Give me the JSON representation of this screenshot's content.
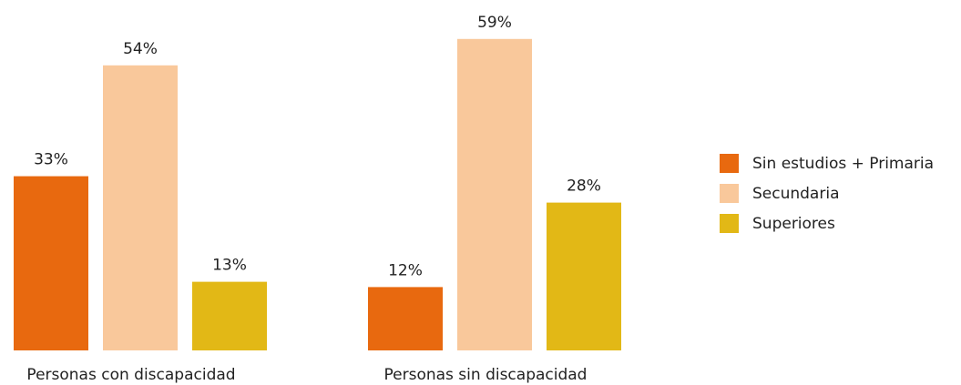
{
  "chart_data": {
    "type": "bar",
    "categories": [
      "Personas con discapacidad",
      "Personas sin discapacidad"
    ],
    "series": [
      {
        "name": "Sin estudios + Primaria",
        "color": "#e8690f",
        "values": [
          33,
          12
        ],
        "value_labels": [
          "33%",
          "12%"
        ]
      },
      {
        "name": "Secundaria",
        "color": "#f9c89b",
        "values": [
          54,
          59
        ],
        "value_labels": [
          "54%",
          "59%"
        ]
      },
      {
        "name": "Superiores",
        "color": "#e2b816",
        "values": [
          13,
          28
        ],
        "value_labels": [
          "13%",
          "28%"
        ]
      }
    ],
    "legend": "right"
  }
}
